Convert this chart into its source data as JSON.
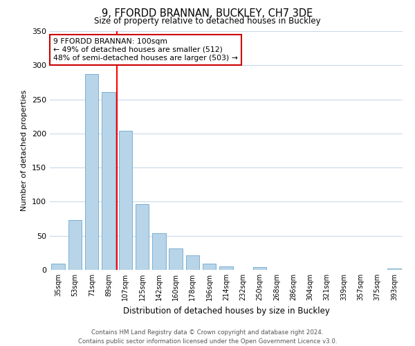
{
  "title": "9, FFORDD BRANNAN, BUCKLEY, CH7 3DE",
  "subtitle": "Size of property relative to detached houses in Buckley",
  "xlabel": "Distribution of detached houses by size in Buckley",
  "ylabel": "Number of detached properties",
  "bar_labels": [
    "35sqm",
    "53sqm",
    "71sqm",
    "89sqm",
    "107sqm",
    "125sqm",
    "142sqm",
    "160sqm",
    "178sqm",
    "196sqm",
    "214sqm",
    "232sqm",
    "250sqm",
    "268sqm",
    "286sqm",
    "304sqm",
    "321sqm",
    "339sqm",
    "357sqm",
    "375sqm",
    "393sqm"
  ],
  "bar_values": [
    9,
    73,
    287,
    261,
    204,
    96,
    54,
    31,
    21,
    9,
    5,
    0,
    4,
    0,
    0,
    0,
    0,
    0,
    0,
    0,
    2
  ],
  "bar_color": "#b8d4e8",
  "bar_edge_color": "#7aafd4",
  "ylim": [
    0,
    350
  ],
  "yticks": [
    0,
    50,
    100,
    150,
    200,
    250,
    300,
    350
  ],
  "annotation_title": "9 FFORDD BRANNAN: 100sqm",
  "annotation_line1": "← 49% of detached houses are smaller (512)",
  "annotation_line2": "48% of semi-detached houses are larger (503) →",
  "annotation_box_color": "#ffffff",
  "annotation_box_edge": "#cc0000",
  "footer_line1": "Contains HM Land Registry data © Crown copyright and database right 2024.",
  "footer_line2": "Contains public sector information licensed under the Open Government Licence v3.0.",
  "background_color": "#ffffff",
  "grid_color": "#c8daea",
  "red_line_x": 3.5
}
